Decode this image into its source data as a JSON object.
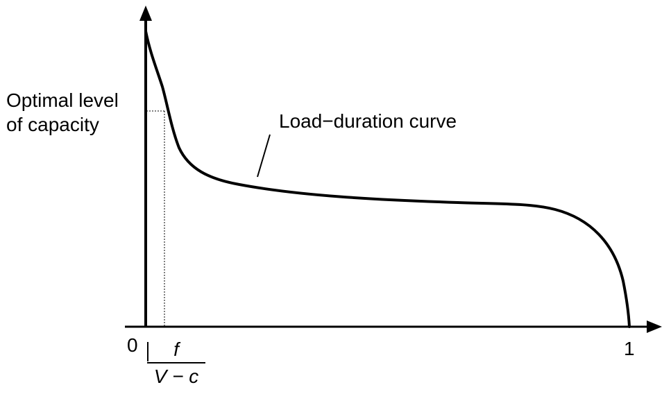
{
  "diagram": {
    "y_label_line1": "Optimal level",
    "y_label_line2": "of capacity",
    "curve_label": "Load−duration curve",
    "origin_label": "0",
    "x_end_label": "1",
    "fraction_numerator": "f",
    "fraction_denominator": "V − c"
  }
}
